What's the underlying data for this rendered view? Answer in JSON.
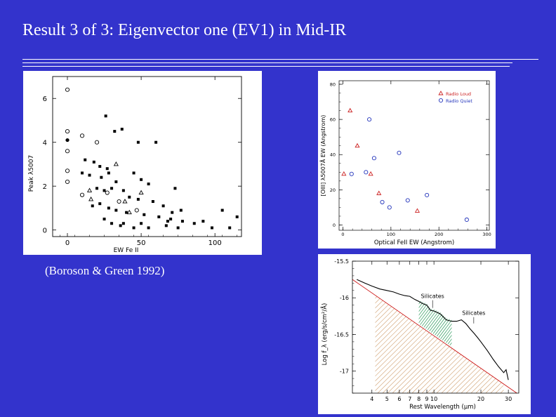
{
  "slide": {
    "title": "Result 3 of 3: Eigenvector one (EV1) in Mid-IR",
    "caption": "(Boroson & Green 1992)"
  },
  "colors": {
    "background": "#3333cc",
    "text": "#ffffff",
    "radio_loud": "#cc2222",
    "radio_quiet": "#2233bb",
    "fit_line": "#cc1111",
    "silicate_hatch": "#2a9a5a",
    "continuum_hatch": "#d0a070"
  },
  "chart_data": [
    {
      "type": "scatter",
      "title": "",
      "xlabel": "EW Fe II",
      "ylabel": "Peak λ5007",
      "xlim": [
        -10,
        118
      ],
      "ylim": [
        -0.3,
        7.0
      ],
      "xticks": [
        "0",
        "50",
        "100"
      ],
      "yticks": [
        "0",
        "2",
        "4",
        "6"
      ],
      "series": [
        {
          "marker": "open-circle",
          "points": [
            [
              0,
              6.4
            ],
            [
              0,
              4.5
            ],
            [
              0,
              3.6
            ],
            [
              0,
              2.7
            ],
            [
              0,
              2.2
            ],
            [
              10,
              4.3
            ],
            [
              20,
              4.0
            ],
            [
              10,
              1.6
            ],
            [
              27,
              1.7
            ],
            [
              35,
              1.3
            ],
            [
              47,
              0.9
            ]
          ]
        },
        {
          "marker": "filled-circle",
          "points": [
            [
              0,
              4.1
            ]
          ]
        },
        {
          "marker": "open-triangle",
          "points": [
            [
              16,
              1.4
            ],
            [
              15,
              1.8
            ],
            [
              33,
              3.0
            ],
            [
              50,
              1.7
            ],
            [
              39,
              1.3
            ],
            [
              42,
              0.8
            ]
          ]
        },
        {
          "marker": "filled-square",
          "points": [
            [
              26,
              5.2
            ],
            [
              37,
              4.6
            ],
            [
              48,
              4.0
            ],
            [
              60,
              4.0
            ],
            [
              32,
              4.5
            ],
            [
              12,
              3.2
            ],
            [
              18,
              3.1
            ],
            [
              22,
              2.9
            ],
            [
              27,
              2.8
            ],
            [
              10,
              2.6
            ],
            [
              15,
              2.5
            ],
            [
              23,
              2.4
            ],
            [
              28,
              2.6
            ],
            [
              33,
              2.2
            ],
            [
              45,
              2.6
            ],
            [
              50,
              2.3
            ],
            [
              55,
              2.1
            ],
            [
              73,
              1.9
            ],
            [
              20,
              1.9
            ],
            [
              25,
              1.8
            ],
            [
              30,
              1.9
            ],
            [
              38,
              1.8
            ],
            [
              42,
              1.5
            ],
            [
              48,
              1.4
            ],
            [
              58,
              1.3
            ],
            [
              65,
              1.1
            ],
            [
              17,
              1.1
            ],
            [
              22,
              1.2
            ],
            [
              28,
              1.0
            ],
            [
              33,
              0.9
            ],
            [
              40,
              0.8
            ],
            [
              52,
              0.7
            ],
            [
              62,
              0.6
            ],
            [
              70,
              0.5
            ],
            [
              78,
              0.4
            ],
            [
              92,
              0.4
            ],
            [
              105,
              0.9
            ],
            [
              115,
              0.6
            ],
            [
              25,
              0.5
            ],
            [
              30,
              0.3
            ],
            [
              36,
              0.2
            ],
            [
              45,
              0.1
            ],
            [
              55,
              0.1
            ],
            [
              67,
              0.2
            ],
            [
              75,
              0.1
            ],
            [
              86,
              0.3
            ],
            [
              98,
              0.1
            ],
            [
              110,
              0.1
            ],
            [
              38,
              0.3
            ],
            [
              50,
              0.3
            ],
            [
              71,
              0.8
            ],
            [
              68,
              0.4
            ],
            [
              77,
              0.9
            ]
          ]
        }
      ]
    },
    {
      "type": "scatter",
      "title": "",
      "xlabel": "Optical FeII EW (Angstrom)",
      "ylabel": "[OIII] λ5007Å EW (Angstrom)",
      "xlim": [
        -8,
        305
      ],
      "ylim": [
        -3,
        82
      ],
      "xticks": [
        "0",
        "100",
        "200",
        "300"
      ],
      "yticks": [
        "0",
        "20",
        "40",
        "60",
        "80"
      ],
      "legend_position": "top-right",
      "series": [
        {
          "name": "Radio Loud",
          "marker": "open-triangle",
          "color": "#cc2222",
          "points": [
            [
              2,
              29
            ],
            [
              15,
              65
            ],
            [
              30,
              45
            ],
            [
              58,
              29
            ],
            [
              75,
              18
            ],
            [
              155,
              8
            ]
          ]
        },
        {
          "name": "Radio Quiet",
          "marker": "open-circle",
          "color": "#2233bb",
          "points": [
            [
              18,
              29
            ],
            [
              48,
              30
            ],
            [
              55,
              60
            ],
            [
              65,
              38
            ],
            [
              82,
              13
            ],
            [
              97,
              10
            ],
            [
              117,
              41
            ],
            [
              135,
              14
            ],
            [
              175,
              17
            ],
            [
              258,
              3
            ]
          ]
        }
      ]
    },
    {
      "type": "line",
      "title": "",
      "xlabel": "Rest Wavelength (μm)",
      "ylabel": "Log f_λ (erg/s/cm²/Å)",
      "xscale": "log",
      "xlim": [
        3,
        35
      ],
      "ylim": [
        -17.3,
        -15.5
      ],
      "xticks": [
        "4",
        "5",
        "6",
        "7",
        "8",
        "9",
        "10",
        "20",
        "30"
      ],
      "yticks": [
        "-15.5",
        "-16",
        "-16.5",
        "-17"
      ],
      "annotations": [
        "Silicates",
        "Silicates"
      ],
      "series": [
        {
          "name": "spectrum",
          "style": "solid-black",
          "x": [
            3.2,
            3.6,
            4.0,
            4.5,
            5.0,
            5.5,
            6.0,
            6.5,
            7.0,
            7.5,
            8.0,
            8.5,
            9.0,
            9.5,
            10.0,
            10.5,
            11.0,
            12.0,
            13.0,
            14.0,
            15.0,
            16.0,
            17.0,
            18.0,
            19.0,
            20.0,
            22.0,
            24.0,
            26.0,
            28.0,
            29.0,
            30.0
          ],
          "y": [
            -15.75,
            -15.8,
            -15.84,
            -15.88,
            -15.9,
            -15.92,
            -15.95,
            -15.97,
            -15.98,
            -16.02,
            -16.05,
            -16.08,
            -16.1,
            -16.17,
            -16.18,
            -16.2,
            -16.22,
            -16.3,
            -16.32,
            -16.32,
            -16.3,
            -16.35,
            -16.42,
            -16.48,
            -16.54,
            -16.6,
            -16.72,
            -16.84,
            -16.94,
            -17.02,
            -16.98,
            -17.12
          ]
        },
        {
          "name": "continuum fit",
          "style": "solid-red",
          "x": [
            3.0,
            34.0
          ],
          "y": [
            -15.75,
            -17.3
          ]
        }
      ]
    }
  ]
}
